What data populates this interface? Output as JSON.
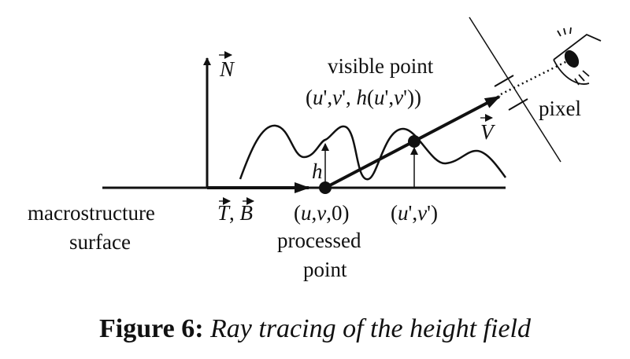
{
  "labels": {
    "normal": "N",
    "visible_point": "visible point",
    "visible_coords_pre": "(",
    "visible_u": "u",
    "visible_comma1": "',",
    "visible_v": "v",
    "visible_comma2": "', ",
    "visible_h": "h",
    "visible_open": "(",
    "visible_u2": "u",
    "visible_comma3": "',",
    "visible_v2": "v",
    "visible_close": "'))",
    "pixel": "pixel",
    "view": "V",
    "height": "h",
    "macro_line1": "macrostructure",
    "macro_line2": "surface",
    "tangent": "T",
    "tb_sep": ", ",
    "binormal": "B",
    "proc_open": "(",
    "proc_u": "u",
    "proc_c1": ",",
    "proc_v": "v",
    "proc_rest": ",0)",
    "proc_line1": "processed",
    "proc_line2": "point",
    "uvp_open": "(",
    "uvp_u": "u",
    "uvp_c": "',",
    "uvp_v": "v",
    "uvp_close": "')"
  },
  "caption": {
    "figure": "Figure 6:",
    "text": " Ray tracing of the height field"
  },
  "colors": {
    "ink": "#111111",
    "background": "#ffffff"
  }
}
